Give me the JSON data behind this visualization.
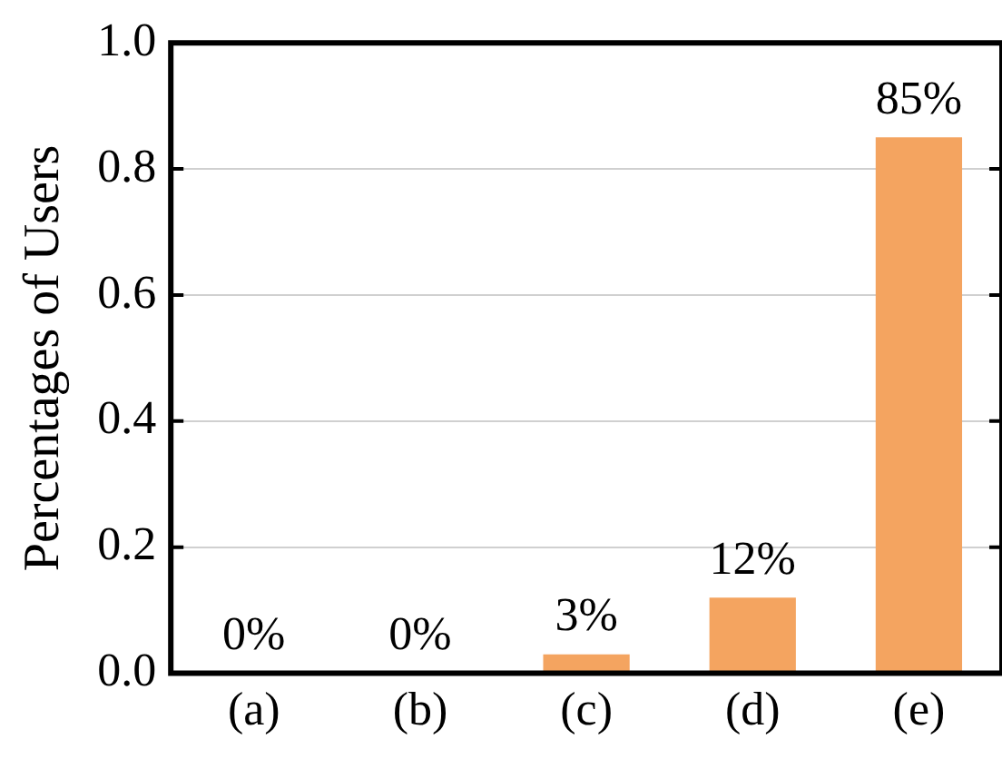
{
  "chart_data": {
    "type": "bar",
    "ylabel": "Percentages of Users",
    "categories": [
      "(a)",
      "(b)",
      "(c)",
      "(d)",
      "(e)"
    ],
    "values": [
      0,
      0,
      0.03,
      0.12,
      0.85
    ],
    "value_labels": [
      "0%",
      "0%",
      "3%",
      "12%",
      "85%"
    ],
    "color": "#f4a460",
    "ylim": [
      0,
      1
    ],
    "yticks": [
      {
        "value": 0,
        "label": "0.0"
      },
      {
        "value": 0.2,
        "label": "0.2"
      },
      {
        "value": 0.4,
        "label": "0.4"
      },
      {
        "value": 0.6,
        "label": "0.6"
      },
      {
        "value": 0.8,
        "label": "0.8"
      },
      {
        "value": 1,
        "label": "1.0"
      }
    ],
    "grid": "y",
    "legend": false
  }
}
